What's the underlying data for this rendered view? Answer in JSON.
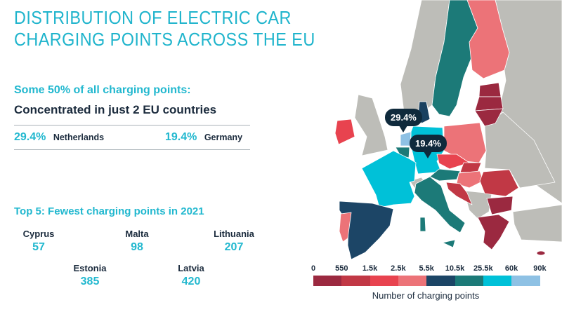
{
  "title_lines": [
    "DISTRIBUTION OF ELECTRIC CAR",
    "CHARGING POINTS ACROSS THE EU"
  ],
  "highlight": {
    "kicker": "Some 50% of all charging points:",
    "headline": "Concentrated in just 2 EU countries",
    "countries": [
      {
        "pct": "29.4%",
        "name": "Netherlands"
      },
      {
        "pct": "19.4%",
        "name": "Germany"
      }
    ]
  },
  "fewest": {
    "heading": "Top 5: Fewest charging points in 2021",
    "items": [
      {
        "name": "Cyprus",
        "value": "57"
      },
      {
        "name": "Malta",
        "value": "98"
      },
      {
        "name": "Lithuania",
        "value": "207"
      },
      {
        "name": "Estonia",
        "value": "385"
      },
      {
        "name": "Latvia",
        "value": "420"
      }
    ]
  },
  "map": {
    "callouts": [
      {
        "country": "Netherlands",
        "label": "29.4%"
      },
      {
        "country": "Germany",
        "label": "19.4%"
      }
    ],
    "non_eu_color": "#bdbdb8"
  },
  "legend": {
    "title": "Number of charging points",
    "ticks": [
      "0",
      "550",
      "1.5k",
      "2.5k",
      "5.5k",
      "10.5k",
      "25.5k",
      "60k",
      "90k"
    ],
    "colors": [
      "#9b2940",
      "#c13845",
      "#e8434f",
      "#ec7378",
      "#1c4566",
      "#1c7a78",
      "#00c1d8",
      "#8ec1e4"
    ]
  }
}
